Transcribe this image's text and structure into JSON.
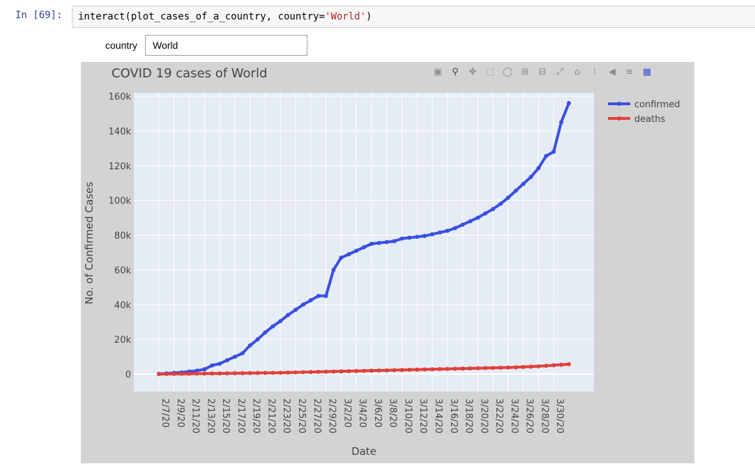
{
  "cell": {
    "prompt": "In [69]:",
    "code_prefix": "interact(plot_cases_of_a_country, country=",
    "code_string": "'World'",
    "code_suffix": ")"
  },
  "widget": {
    "label": "country",
    "value": "World"
  },
  "toolbar": {
    "icons": [
      "camera-icon",
      "zoom-icon",
      "pan-icon",
      "box-select-icon",
      "lasso-select-icon",
      "zoom-in-icon",
      "zoom-out-icon",
      "autoscale-icon",
      "reset-axes-icon",
      "spike-lines-icon",
      "hover-closest-icon",
      "hover-compare-icon",
      "plotly-logo-icon"
    ]
  },
  "chart_data": {
    "type": "line",
    "title": "COVID 19 cases of World",
    "xlabel": "Date",
    "ylabel": "No. of Confirmed Cases",
    "ylim": [
      -10000,
      162000
    ],
    "yticks": [
      0,
      20000,
      40000,
      60000,
      80000,
      100000,
      120000,
      140000,
      160000
    ],
    "ytick_labels": [
      "0",
      "20k",
      "40k",
      "60k",
      "80k",
      "100k",
      "120k",
      "140k",
      "160k"
    ],
    "x_start": "2/7/20",
    "x_end": "3/30/20",
    "xtick_labels": [
      "2/7/20",
      "2/9/20",
      "2/11/20",
      "2/13/20",
      "2/15/20",
      "2/17/20",
      "2/19/20",
      "2/21/20",
      "2/23/20",
      "2/25/20",
      "2/27/20",
      "2/29/20",
      "3/2/20",
      "3/4/20",
      "3/6/20",
      "3/8/20",
      "3/10/20",
      "3/12/20",
      "3/14/20",
      "3/16/20",
      "3/18/20",
      "3/20/20",
      "3/22/20",
      "3/24/20",
      "3/26/20",
      "3/28/20",
      "3/30/20"
    ],
    "grid": true,
    "legend_position": "top-right",
    "series": [
      {
        "name": "confirmed",
        "color": "#3a4fe0",
        "values": [
          200,
          400,
          700,
          1000,
          1500,
          2000,
          2800,
          5000,
          6000,
          8000,
          10000,
          12000,
          16500,
          20000,
          24000,
          27500,
          30500,
          34000,
          37000,
          40000,
          42500,
          45000,
          45000,
          60000,
          67000,
          69000,
          71000,
          73000,
          75000,
          75500,
          76000,
          76500,
          78000,
          78500,
          79000,
          79500,
          80500,
          81500,
          82500,
          84000,
          86000,
          88000,
          90000,
          92500,
          95000,
          98000,
          101500,
          105500,
          109500,
          113500,
          118500,
          125500,
          128000,
          145000,
          156000
        ]
      },
      {
        "name": "deaths",
        "color": "#e0413a",
        "values": [
          0,
          50,
          100,
          150,
          200,
          250,
          300,
          350,
          400,
          450,
          500,
          550,
          600,
          650,
          700,
          750,
          800,
          900,
          1000,
          1100,
          1200,
          1300,
          1400,
          1500,
          1600,
          1700,
          1800,
          1900,
          2000,
          2100,
          2200,
          2300,
          2400,
          2500,
          2600,
          2700,
          2800,
          2900,
          3000,
          3100,
          3200,
          3300,
          3400,
          3500,
          3600,
          3700,
          3800,
          3900,
          4100,
          4300,
          4500,
          4800,
          5100,
          5400,
          5700
        ]
      }
    ]
  }
}
